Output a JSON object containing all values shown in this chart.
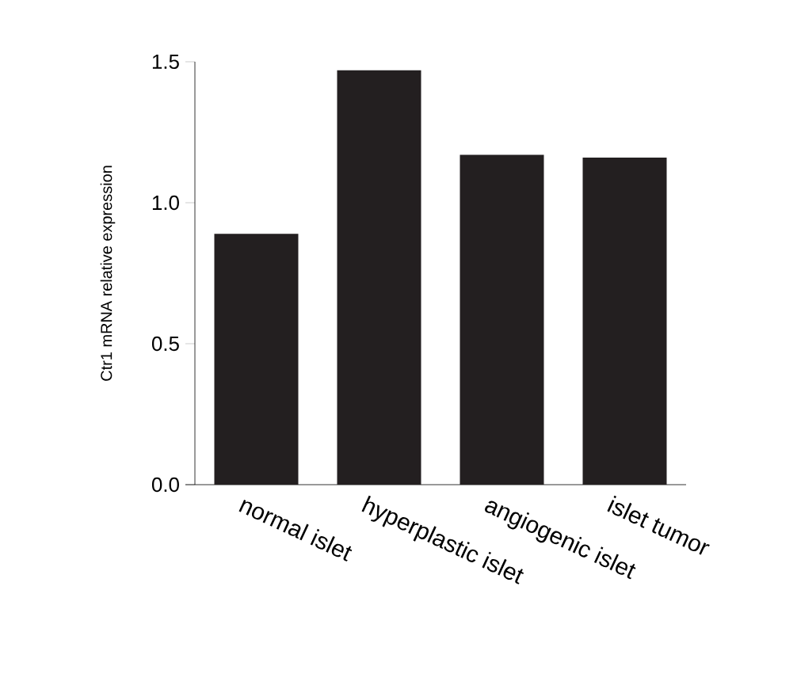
{
  "chart_data": {
    "type": "bar",
    "ylabel": "Ctr1 mRNA relative expression",
    "categories": [
      "normal islet",
      "hyperplastic islet",
      "angiogenic islet",
      "islet tumor"
    ],
    "values": [
      0.89,
      1.47,
      1.17,
      1.16
    ],
    "color": "#231f20",
    "ylim": [
      0,
      1.5
    ],
    "yticks": [
      {
        "value": 0,
        "label": "0.0"
      },
      {
        "value": 0.5,
        "label": "0.5"
      },
      {
        "value": 1,
        "label": "1.0"
      },
      {
        "value": 1.5,
        "label": "1.5"
      }
    ],
    "grid": false
  }
}
